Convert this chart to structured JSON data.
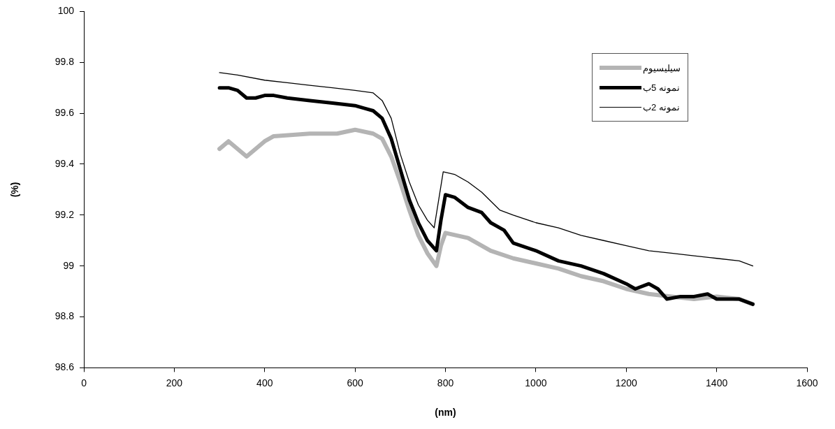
{
  "chart_data": {
    "type": "line",
    "xlabel": "(nm)",
    "ylabel": "(%)",
    "xlim": [
      0,
      1600
    ],
    "xticks": [
      0,
      200,
      400,
      600,
      800,
      1000,
      1200,
      1400,
      1600
    ],
    "ylim": [
      98.6,
      100
    ],
    "yticks": [
      98.6,
      98.8,
      99,
      99.2,
      99.4,
      99.6,
      99.8,
      100
    ],
    "grid": false,
    "legend": "top right",
    "marker": "none",
    "line_style": "solid",
    "series": [
      {
        "name": "سیلیسیوم",
        "color": "#b4b4b4",
        "x": [
          300,
          320,
          360,
          400,
          420,
          500,
          560,
          600,
          640,
          660,
          680,
          700,
          720,
          740,
          760,
          780,
          790,
          800,
          850,
          900,
          950,
          1000,
          1050,
          1100,
          1150,
          1200,
          1250,
          1300,
          1350,
          1400,
          1450,
          1480
        ],
        "values": [
          99.46,
          99.49,
          99.43,
          99.49,
          99.51,
          99.52,
          99.52,
          99.535,
          99.52,
          99.5,
          99.43,
          99.33,
          99.22,
          99.12,
          99.05,
          99.0,
          99.08,
          99.13,
          99.11,
          99.06,
          99.03,
          99.01,
          98.99,
          98.96,
          98.94,
          98.91,
          98.89,
          98.88,
          98.87,
          98.88,
          98.87,
          98.85
        ]
      },
      {
        "name": "نمونه 5ب",
        "color": "#000000",
        "x": [
          300,
          320,
          340,
          360,
          380,
          400,
          420,
          450,
          500,
          550,
          600,
          620,
          640,
          660,
          680,
          700,
          720,
          740,
          760,
          780,
          790,
          800,
          820,
          850,
          880,
          900,
          930,
          950,
          1000,
          1050,
          1100,
          1150,
          1200,
          1220,
          1250,
          1270,
          1290,
          1320,
          1350,
          1380,
          1400,
          1450,
          1480
        ],
        "values": [
          99.7,
          99.7,
          99.69,
          99.66,
          99.66,
          99.67,
          99.67,
          99.66,
          99.65,
          99.64,
          99.63,
          99.62,
          99.61,
          99.58,
          99.5,
          99.38,
          99.26,
          99.17,
          99.1,
          99.06,
          99.18,
          99.28,
          99.27,
          99.23,
          99.21,
          99.17,
          99.14,
          99.09,
          99.06,
          99.02,
          99.0,
          98.97,
          98.93,
          98.91,
          98.93,
          98.91,
          98.87,
          98.88,
          98.88,
          98.89,
          98.87,
          98.87,
          98.85
        ]
      },
      {
        "name": "نمونه 2ب",
        "color": "#000000",
        "x": [
          300,
          340,
          400,
          450,
          500,
          550,
          600,
          640,
          660,
          680,
          700,
          720,
          740,
          760,
          775,
          795,
          820,
          850,
          880,
          920,
          950,
          1000,
          1050,
          1100,
          1150,
          1200,
          1250,
          1300,
          1350,
          1400,
          1450,
          1480
        ],
        "values": [
          99.76,
          99.75,
          99.73,
          99.72,
          99.71,
          99.7,
          99.69,
          99.68,
          99.65,
          99.58,
          99.44,
          99.33,
          99.24,
          99.18,
          99.15,
          99.37,
          99.36,
          99.33,
          99.29,
          99.22,
          99.2,
          99.17,
          99.15,
          99.12,
          99.1,
          99.08,
          99.06,
          99.05,
          99.04,
          99.03,
          99.02,
          99.0
        ]
      }
    ]
  }
}
